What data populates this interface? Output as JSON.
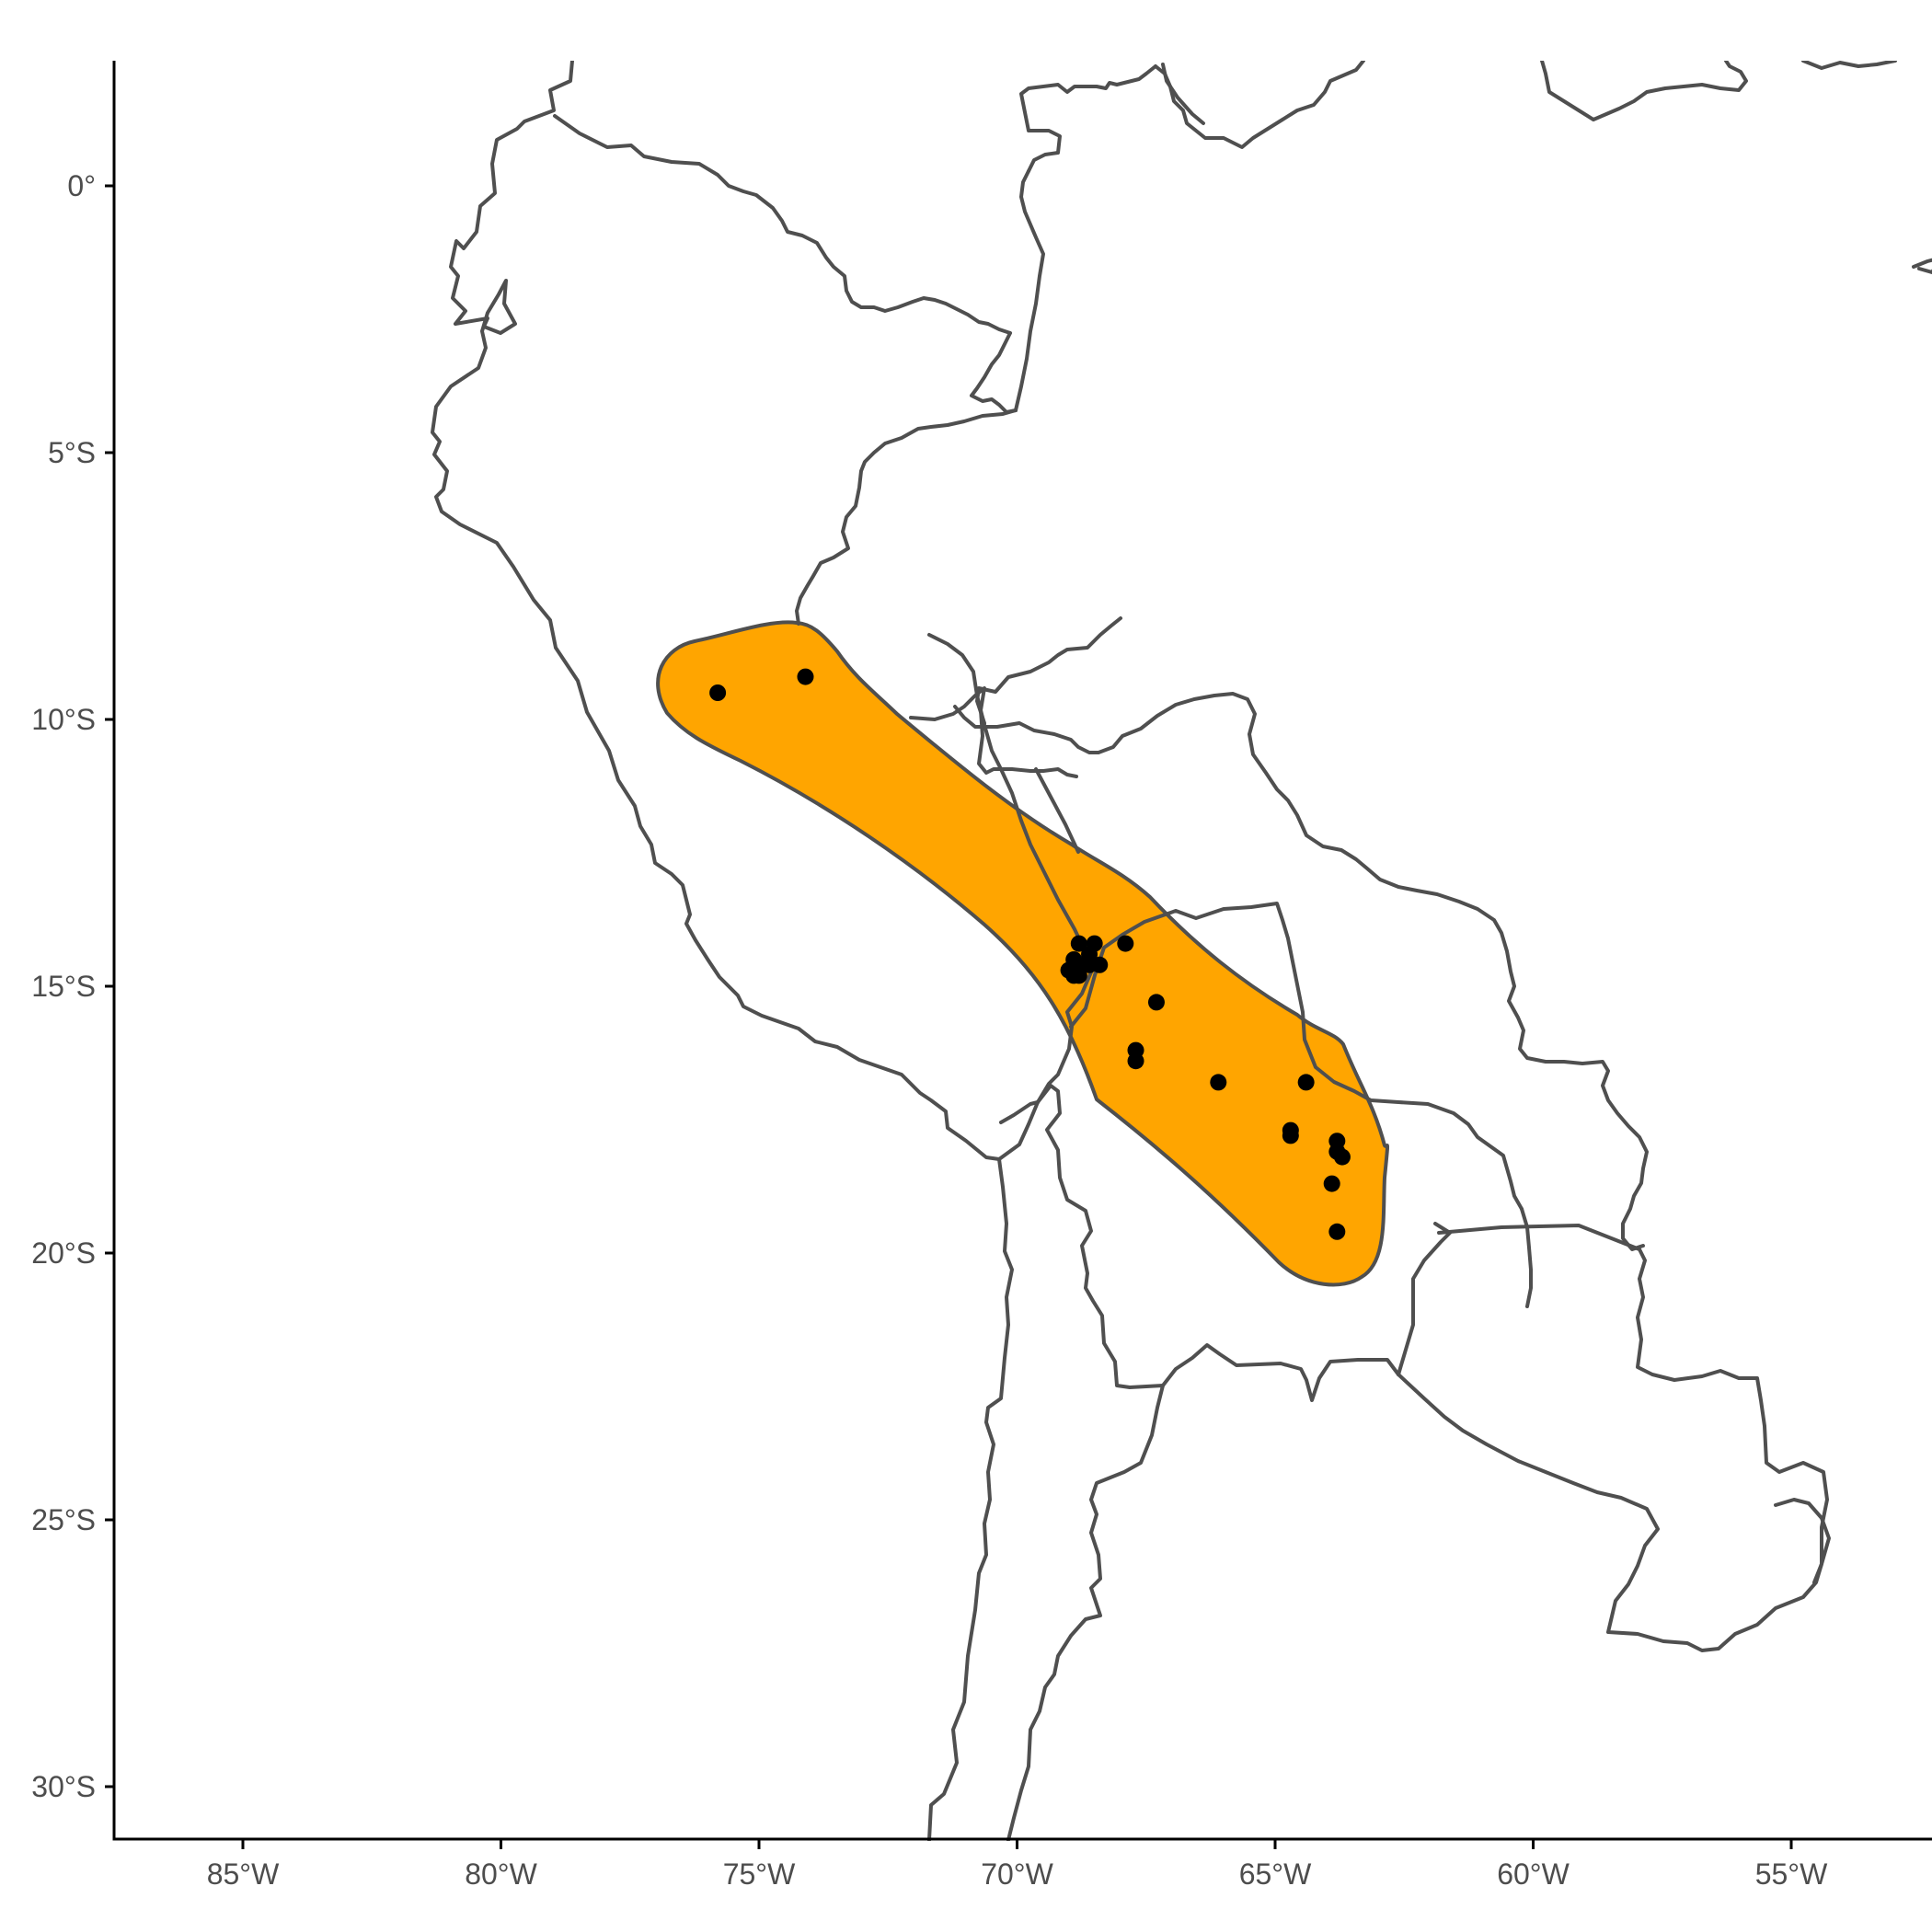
{
  "chart_data": {
    "type": "scatter",
    "title": "",
    "xlabel": "",
    "ylabel": "",
    "x_ticks": [
      {
        "value": -85,
        "label": "85°W"
      },
      {
        "value": -80,
        "label": "80°W"
      },
      {
        "value": -75,
        "label": "75°W"
      },
      {
        "value": -70,
        "label": "70°W"
      },
      {
        "value": -65,
        "label": "65°W"
      },
      {
        "value": -60,
        "label": "60°W"
      },
      {
        "value": -55,
        "label": "55°W"
      }
    ],
    "y_ticks": [
      {
        "value": 0,
        "label": "0°"
      },
      {
        "value": -5,
        "label": "5°S"
      },
      {
        "value": -10,
        "label": "10°S"
      },
      {
        "value": -15,
        "label": "15°S"
      },
      {
        "value": -20,
        "label": "20°S"
      },
      {
        "value": -25,
        "label": "25°S"
      },
      {
        "value": -30,
        "label": "30°S"
      }
    ],
    "xlim": [
      -87.5,
      -52.4
    ],
    "ylim": [
      -31.0,
      2.3
    ],
    "grid": false,
    "range_fill": "#ffa500",
    "border_color": "#4f4f4f",
    "point_color": "#000000",
    "points": [
      {
        "lon": -75.8,
        "lat": -9.5
      },
      {
        "lon": -74.1,
        "lat": -9.2
      },
      {
        "lon": -68.8,
        "lat": -14.2
      },
      {
        "lon": -68.5,
        "lat": -14.2
      },
      {
        "lon": -68.6,
        "lat": -14.4
      },
      {
        "lon": -68.9,
        "lat": -14.5
      },
      {
        "lon": -68.8,
        "lat": -14.6
      },
      {
        "lon": -68.4,
        "lat": -14.6
      },
      {
        "lon": -68.6,
        "lat": -14.6
      },
      {
        "lon": -69.0,
        "lat": -14.7
      },
      {
        "lon": -68.9,
        "lat": -14.8
      },
      {
        "lon": -68.8,
        "lat": -14.8
      },
      {
        "lon": -67.9,
        "lat": -14.2
      },
      {
        "lon": -67.3,
        "lat": -15.3
      },
      {
        "lon": -67.7,
        "lat": -16.2
      },
      {
        "lon": -67.7,
        "lat": -16.4
      },
      {
        "lon": -66.1,
        "lat": -16.8
      },
      {
        "lon": -64.4,
        "lat": -16.8
      },
      {
        "lon": -64.7,
        "lat": -17.7
      },
      {
        "lon": -64.7,
        "lat": -17.8
      },
      {
        "lon": -63.8,
        "lat": -17.9
      },
      {
        "lon": -63.8,
        "lat": -18.1
      },
      {
        "lon": -63.7,
        "lat": -18.2
      },
      {
        "lon": -63.9,
        "lat": -18.7
      },
      {
        "lon": -63.8,
        "lat": -19.6
      }
    ]
  }
}
